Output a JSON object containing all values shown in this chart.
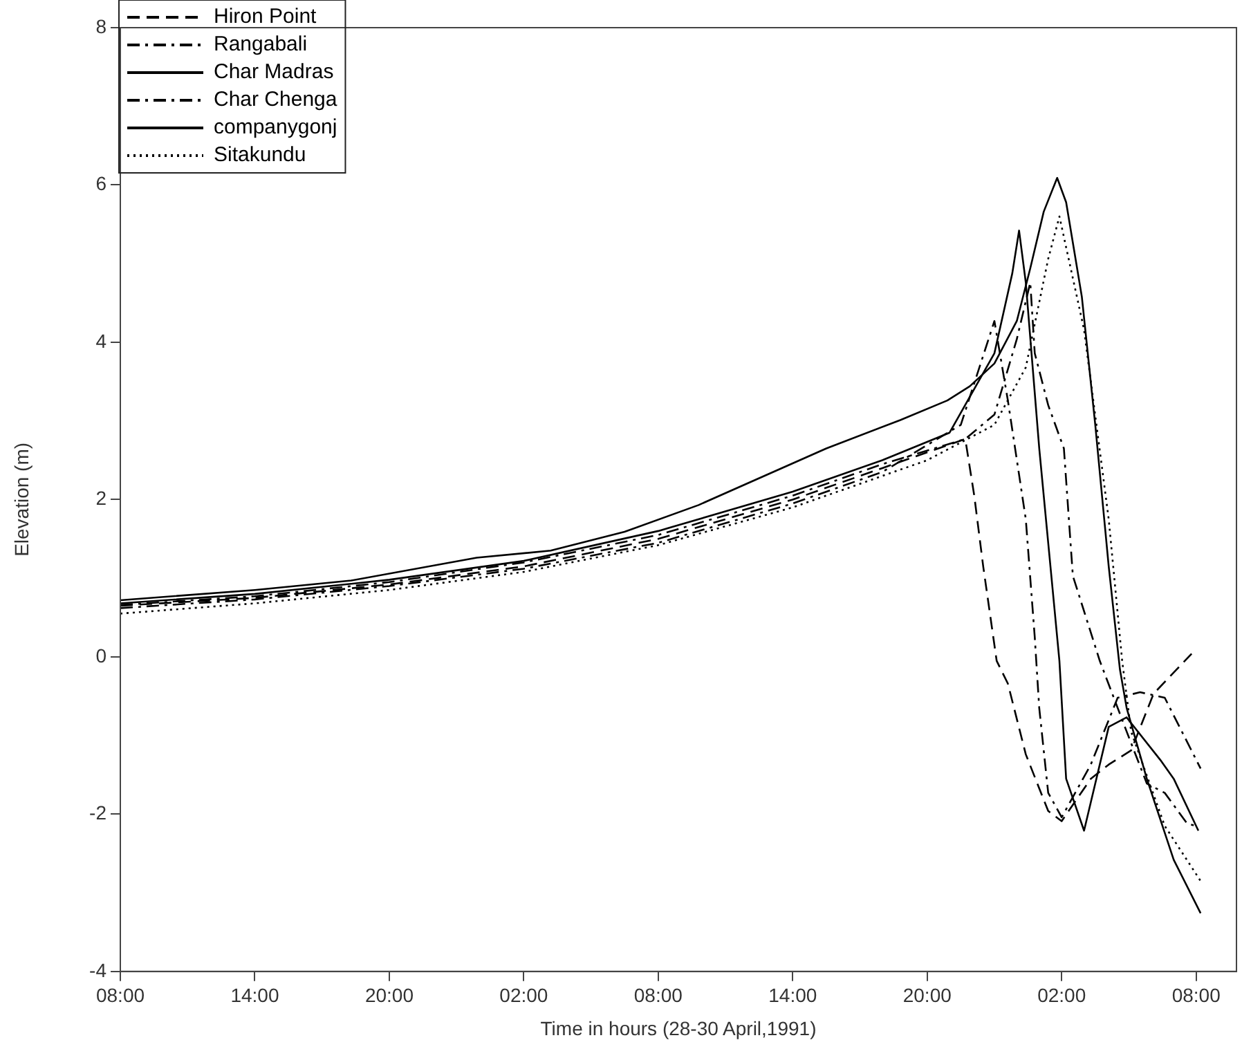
{
  "chart_data": {
    "type": "line",
    "xlabel": "Time in hours (28-30 April,1991)",
    "ylabel": "Elevation (m)",
    "xlim": [
      "1991-04-28T08:00",
      "1991-04-30T09:48"
    ],
    "xticks": [
      {
        "value": "1991-04-28T08:00",
        "label": "08:00"
      },
      {
        "value": "1991-04-28T14:00",
        "label": "14:00"
      },
      {
        "value": "1991-04-28T20:00",
        "label": "20:00"
      },
      {
        "value": "1991-04-29T02:00",
        "label": "02:00"
      },
      {
        "value": "1991-04-29T08:00",
        "label": "08:00"
      },
      {
        "value": "1991-04-29T14:00",
        "label": "14:00"
      },
      {
        "value": "1991-04-29T20:00",
        "label": "20:00"
      },
      {
        "value": "1991-04-30T02:00",
        "label": "02:00"
      },
      {
        "value": "1991-04-30T08:00",
        "label": "08:00"
      }
    ],
    "ylim": [
      -4,
      8
    ],
    "yticks": [
      -4,
      -2,
      0,
      2,
      4,
      6,
      8
    ],
    "grid": false,
    "legend": "top left",
    "marker": "none",
    "series": [
      {
        "name": "Hiron Point",
        "color": "#000000",
        "line_style": "dashed",
        "x": [
          "1991-04-28T08:00",
          "1991-04-28T14:00",
          "1991-04-28T20:00",
          "1991-04-29T02:00",
          "1991-04-29T08:00",
          "1991-04-29T14:00",
          "1991-04-29T18:00",
          "1991-04-29T21:00",
          "1991-04-29T21:42",
          "1991-04-29T22:06",
          "1991-04-29T22:30",
          "1991-04-29T23:06",
          "1991-04-29T23:36",
          "1991-04-30T00:24",
          "1991-04-30T01:24",
          "1991-04-30T02:00",
          "1991-04-30T03:18",
          "1991-04-30T04:06",
          "1991-04-30T05:06",
          "1991-04-30T06:06",
          "1991-04-30T07:48"
        ],
        "values": [
          0.65,
          0.75,
          0.92,
          1.15,
          1.5,
          2.0,
          2.4,
          2.7,
          2.77,
          2.05,
          1.15,
          -0.05,
          -0.34,
          -1.24,
          -1.96,
          -2.09,
          -1.55,
          -1.37,
          -1.19,
          -0.47,
          0.04
        ]
      },
      {
        "name": "Rangabali",
        "color": "#000000",
        "line_style": "dashdot",
        "x": [
          "1991-04-28T08:00",
          "1991-04-28T14:00",
          "1991-04-28T20:00",
          "1991-04-29T02:00",
          "1991-04-29T08:00",
          "1991-04-29T14:00",
          "1991-04-29T18:00",
          "1991-04-29T21:30",
          "1991-04-29T23:00",
          "1991-04-29T23:36",
          "1991-04-30T00:24",
          "1991-04-30T00:48",
          "1991-04-30T01:00",
          "1991-04-30T01:24",
          "1991-04-30T02:00",
          "1991-04-30T03:18",
          "1991-04-30T04:30",
          "1991-04-30T05:30",
          "1991-04-30T06:36",
          "1991-04-30T08:12"
        ],
        "values": [
          0.62,
          0.73,
          0.9,
          1.12,
          1.45,
          1.95,
          2.35,
          2.95,
          4.27,
          3.26,
          1.75,
          0.25,
          -0.65,
          -1.73,
          -2.04,
          -1.37,
          -0.52,
          -0.45,
          -0.52,
          -1.42
        ]
      },
      {
        "name": "Char Madras",
        "color": "#000000",
        "line_style": "solid",
        "x": [
          "1991-04-28T08:00",
          "1991-04-28T14:00",
          "1991-04-28T20:00",
          "1991-04-29T02:00",
          "1991-04-29T08:00",
          "1991-04-29T14:00",
          "1991-04-29T18:00",
          "1991-04-29T21:00",
          "1991-04-29T23:00",
          "1991-04-29T23:48",
          "1991-04-30T00:06",
          "1991-04-30T00:24",
          "1991-04-30T01:00",
          "1991-04-30T01:36",
          "1991-04-30T01:54",
          "1991-04-30T02:12",
          "1991-04-30T03:00",
          "1991-04-30T04:06",
          "1991-04-30T04:54",
          "1991-04-30T06:24",
          "1991-04-30T07:00",
          "1991-04-30T08:06"
        ],
        "values": [
          0.68,
          0.8,
          0.98,
          1.22,
          1.6,
          2.1,
          2.5,
          2.85,
          3.86,
          4.88,
          5.42,
          4.76,
          2.65,
          0.85,
          -0.05,
          -1.55,
          -2.21,
          -0.89,
          -0.77,
          -1.31,
          -1.55,
          -2.21
        ]
      },
      {
        "name": "Char Chenga",
        "color": "#000000",
        "line_style": "dashdot",
        "x": [
          "1991-04-28T08:00",
          "1991-04-28T14:00",
          "1991-04-28T20:00",
          "1991-04-29T02:00",
          "1991-04-29T08:00",
          "1991-04-29T14:00",
          "1991-04-29T18:00",
          "1991-04-29T21:42",
          "1991-04-29T23:00",
          "1991-04-30T00:00",
          "1991-04-30T00:36",
          "1991-04-30T00:48",
          "1991-04-30T01:24",
          "1991-04-30T02:06",
          "1991-04-30T02:30",
          "1991-04-30T03:42",
          "1991-04-30T04:54",
          "1991-04-30T05:48",
          "1991-04-30T06:36",
          "1991-04-30T07:36",
          "1991-04-30T08:00"
        ],
        "values": [
          0.66,
          0.77,
          0.95,
          1.2,
          1.55,
          2.05,
          2.45,
          2.77,
          3.08,
          4.04,
          4.76,
          3.86,
          3.2,
          2.65,
          1.03,
          -0.05,
          -0.95,
          -1.61,
          -1.73,
          -2.12,
          -2.15
        ]
      },
      {
        "name": "companygonj",
        "color": "#000000",
        "line_style": "solid",
        "x": [
          "1991-04-28T08:00",
          "1991-04-28T14:00",
          "1991-04-28T18:18",
          "1991-04-28T23:54",
          "1991-04-29T03:12",
          "1991-04-29T06:30",
          "1991-04-29T09:48",
          "1991-04-29T15:30",
          "1991-04-29T18:48",
          "1991-04-29T20:54",
          "1991-04-29T21:54",
          "1991-04-29T23:00",
          "1991-04-30T00:00",
          "1991-04-30T00:36",
          "1991-04-30T01:12",
          "1991-04-30T01:48",
          "1991-04-30T02:12",
          "1991-04-30T02:54",
          "1991-04-30T03:30",
          "1991-04-30T04:06",
          "1991-04-30T04:36",
          "1991-04-30T04:54",
          "1991-04-30T05:48",
          "1991-04-30T07:00",
          "1991-04-30T08:12"
        ],
        "values": [
          0.72,
          0.85,
          0.97,
          1.26,
          1.35,
          1.59,
          1.93,
          2.65,
          3.01,
          3.26,
          3.44,
          3.73,
          4.27,
          4.94,
          5.66,
          6.09,
          5.78,
          4.58,
          2.95,
          1.15,
          -0.16,
          -0.65,
          -1.55,
          -2.58,
          -3.26
        ]
      },
      {
        "name": "Sitakundu",
        "color": "#000000",
        "line_style": "dotted",
        "x": [
          "1991-04-28T08:00",
          "1991-04-28T14:00",
          "1991-04-28T20:00",
          "1991-04-29T02:00",
          "1991-04-29T08:00",
          "1991-04-29T14:00",
          "1991-04-29T18:00",
          "1991-04-29T20:00",
          "1991-04-29T23:00",
          "1991-04-30T00:24",
          "1991-04-30T01:24",
          "1991-04-30T01:54",
          "1991-04-30T03:00",
          "1991-04-30T04:06",
          "1991-04-30T04:42",
          "1991-04-30T05:06",
          "1991-04-30T06:36",
          "1991-04-30T08:12"
        ],
        "values": [
          0.55,
          0.68,
          0.85,
          1.08,
          1.42,
          1.9,
          2.3,
          2.5,
          2.95,
          3.68,
          5.06,
          5.6,
          4.16,
          1.75,
          -0.05,
          -0.95,
          -2.15,
          -2.85
        ]
      }
    ]
  }
}
